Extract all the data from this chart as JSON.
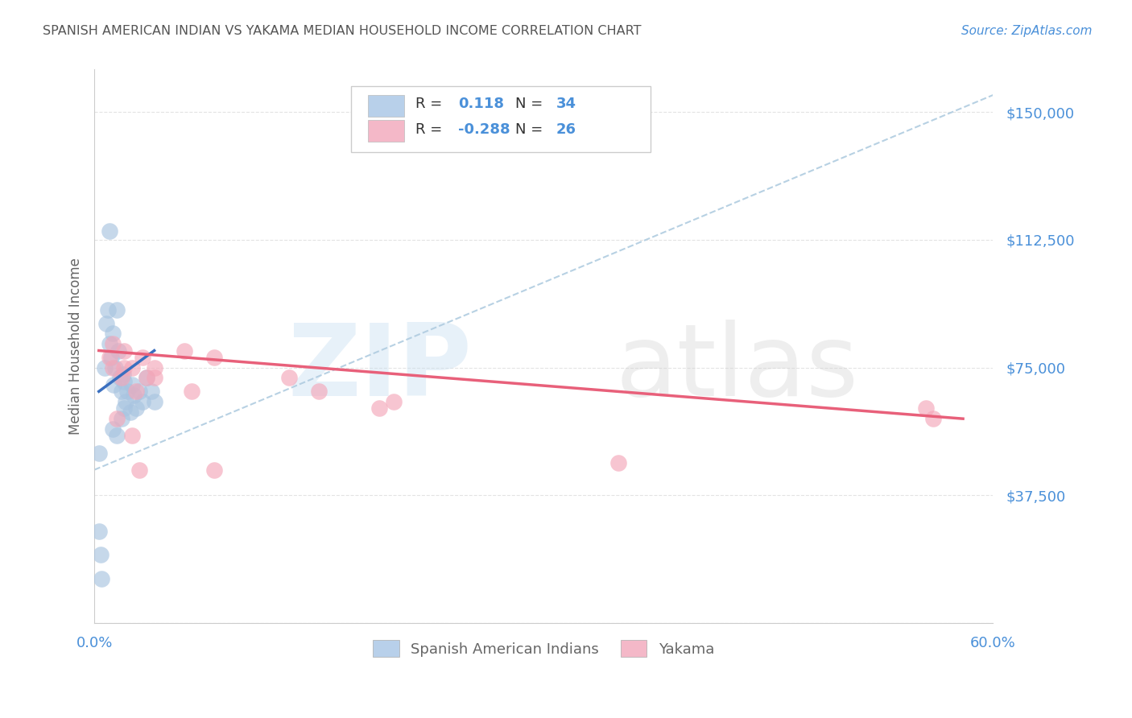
{
  "title": "SPANISH AMERICAN INDIAN VS YAKAMA MEDIAN HOUSEHOLD INCOME CORRELATION CHART",
  "source": "Source: ZipAtlas.com",
  "ylabel": "Median Household Income",
  "xlim": [
    0.0,
    0.6
  ],
  "ylim": [
    0,
    162500
  ],
  "yticks": [
    0,
    37500,
    75000,
    112500,
    150000
  ],
  "ytick_labels": [
    "",
    "$37,500",
    "$75,000",
    "$112,500",
    "$150,000"
  ],
  "xticks": [
    0.0,
    0.1,
    0.2,
    0.3,
    0.4,
    0.5,
    0.6
  ],
  "xtick_labels": [
    "0.0%",
    "",
    "",
    "",
    "",
    "",
    "60.0%"
  ],
  "watermark_zip": "ZIP",
  "watermark_atlas": "atlas",
  "blue_R": 0.118,
  "blue_N": 34,
  "pink_R": -0.288,
  "pink_N": 26,
  "blue_color": "#a8c4e0",
  "blue_line_color": "#3a6fbf",
  "blue_legend_color": "#b8d0ea",
  "pink_color": "#f4a7b9",
  "pink_line_color": "#e8607a",
  "pink_legend_color": "#f4b8c8",
  "dashed_line_color": "#b0cce0",
  "background_color": "#ffffff",
  "grid_color": "#dddddd",
  "title_color": "#555555",
  "label_color": "#666666",
  "tick_label_color": "#4a90d9",
  "blue_scatter_x": [
    0.003,
    0.005,
    0.007,
    0.008,
    0.009,
    0.01,
    0.011,
    0.012,
    0.013,
    0.014,
    0.015,
    0.016,
    0.017,
    0.018,
    0.019,
    0.02,
    0.021,
    0.022,
    0.024,
    0.025,
    0.026,
    0.028,
    0.03,
    0.032,
    0.035,
    0.038,
    0.04,
    0.012,
    0.015,
    0.018,
    0.02,
    0.01,
    0.003,
    0.004
  ],
  "blue_scatter_y": [
    27000,
    13000,
    75000,
    88000,
    92000,
    82000,
    78000,
    85000,
    70000,
    75000,
    92000,
    80000,
    72000,
    68000,
    73000,
    71000,
    65000,
    68000,
    62000,
    70000,
    67000,
    63000,
    68000,
    65000,
    72000,
    68000,
    65000,
    57000,
    55000,
    60000,
    63000,
    115000,
    50000,
    20000
  ],
  "pink_scatter_x": [
    0.01,
    0.012,
    0.018,
    0.02,
    0.025,
    0.028,
    0.032,
    0.035,
    0.06,
    0.065,
    0.08,
    0.15,
    0.2,
    0.13,
    0.35,
    0.555,
    0.56,
    0.015,
    0.025,
    0.04,
    0.04,
    0.08,
    0.19,
    0.03,
    0.02,
    0.012
  ],
  "pink_scatter_y": [
    78000,
    75000,
    72000,
    80000,
    75000,
    68000,
    78000,
    72000,
    80000,
    68000,
    78000,
    68000,
    65000,
    72000,
    47000,
    63000,
    60000,
    60000,
    55000,
    75000,
    72000,
    45000,
    63000,
    45000,
    75000,
    82000
  ],
  "blue_trend_x": [
    0.003,
    0.04
  ],
  "blue_trend_y": [
    68000,
    80000
  ],
  "pink_trend_x": [
    0.003,
    0.58
  ],
  "pink_trend_y": [
    80000,
    60000
  ],
  "dashed_trend_x": [
    0.0,
    0.6
  ],
  "dashed_trend_y": [
    45000,
    155000
  ],
  "legend_labels": [
    "Spanish American Indians",
    "Yakama"
  ]
}
